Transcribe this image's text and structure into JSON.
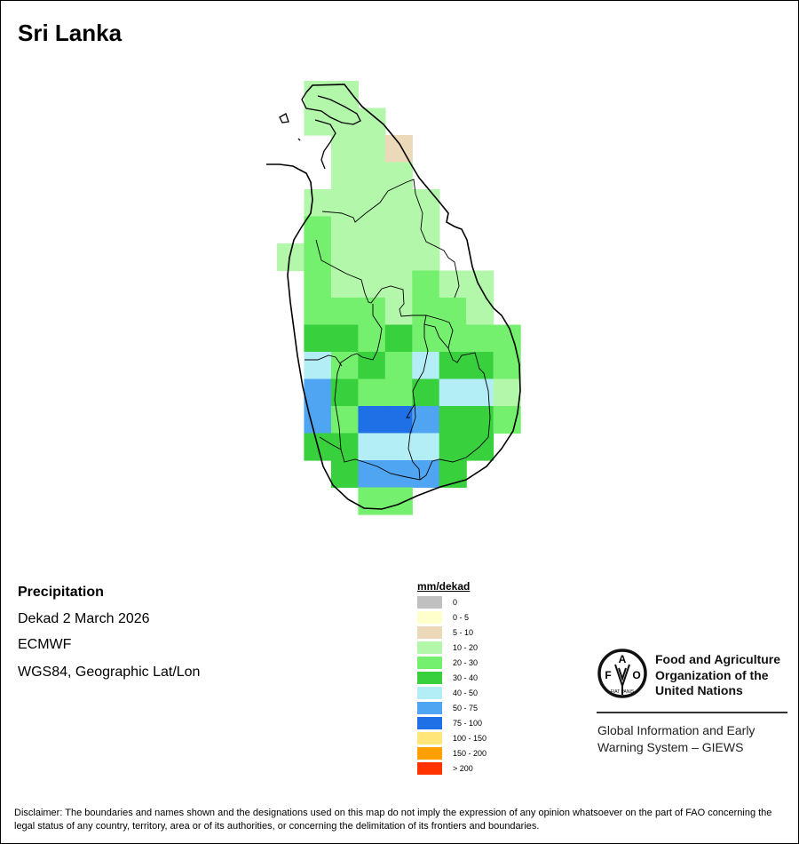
{
  "title": "Sri Lanka",
  "info": {
    "variable": "Precipitation",
    "period": "Dekad 2 March 2026",
    "source": "ECMWF",
    "projection": "WGS84, Geographic Lat/Lon"
  },
  "legend": {
    "title": "mm/dekad",
    "classes": [
      {
        "code": "Z",
        "label": "0",
        "color": "#c0c0c0"
      },
      {
        "code": "Y",
        "label": "0 - 5",
        "color": "#ffffcc"
      },
      {
        "code": "T",
        "label": "5 - 10",
        "color": "#ecd9b9"
      },
      {
        "code": "A",
        "label": "10 - 20",
        "color": "#b3f7aa"
      },
      {
        "code": "B",
        "label": "20 - 30",
        "color": "#74f06e"
      },
      {
        "code": "C",
        "label": "30 - 40",
        "color": "#38d13d"
      },
      {
        "code": "D",
        "label": "40 - 50",
        "color": "#b3eef7"
      },
      {
        "code": "E",
        "label": "50 - 75",
        "color": "#50a5f2"
      },
      {
        "code": "F",
        "label": "75 - 100",
        "color": "#1f6fe6"
      },
      {
        "code": "G",
        "label": "100 - 150",
        "color": "#ffe57a"
      },
      {
        "code": "H",
        "label": "150 - 200",
        "color": "#ff9f00"
      },
      {
        "code": "I",
        "label": "> 200",
        "color": "#ff3300"
      }
    ]
  },
  "grid": [
    ".AA.......",
    ".AAA......",
    "..AAT.....",
    "..AAA.....",
    ".AAAAA....",
    ".BAAAA....",
    "ABAAAA....",
    ".BAAABAA..",
    ".BBBABBA..",
    ".CCBCBBBB.",
    ".DBCBDCCB.",
    ".ECBBCDDA.",
    ".EBFFECCB.",
    ".CCDDDCC..",
    "..CEEEC...",
    "...BB....."
  ],
  "logo": {
    "org_name": [
      "Food and Agriculture",
      "Organization of the",
      "United Nations"
    ],
    "system_name": [
      "Global Information and Early",
      "Warning System – GIEWS"
    ],
    "emblem_text": "FAO FIAT PANIS"
  },
  "disclaimer": "Disclaimer: The boundaries and names shown and the designations used on this map do not imply the expression of any opinion whatsoever on the part of FAO concerning the legal status of any country, territory, area or of its authorities, or concerning the delimitation of its frontiers and boundaries."
}
